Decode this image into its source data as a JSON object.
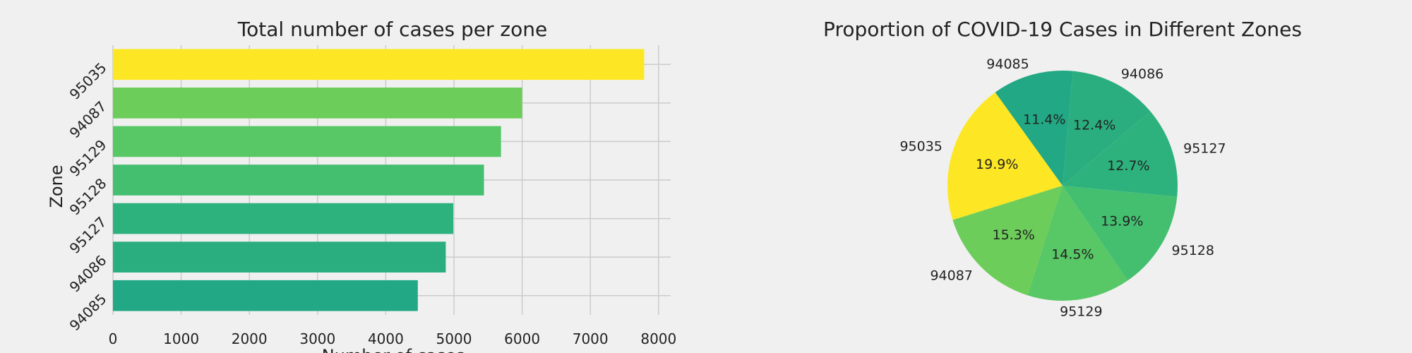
{
  "chart_data": [
    {
      "type": "bar",
      "orientation": "horizontal",
      "title": "Total number of cases per zone",
      "xlabel": "Number of cases",
      "ylabel": "Zone",
      "categories": [
        "95035",
        "94087",
        "95129",
        "95128",
        "95127",
        "94086",
        "94085"
      ],
      "values": [
        7790,
        6000,
        5690,
        5440,
        4990,
        4880,
        4470
      ],
      "xticks": [
        0,
        1000,
        2000,
        3000,
        4000,
        5000,
        6000,
        7000,
        8000
      ],
      "xlim": [
        0,
        8150
      ],
      "grid": true,
      "colors": [
        "#fde725",
        "#6ccd5a",
        "#58c765",
        "#44bf70",
        "#2db27d",
        "#2aae80",
        "#22a884"
      ]
    },
    {
      "type": "pie",
      "title": "Proportion of COVID-19 Cases in Different Zones",
      "labels": [
        "95035",
        "94087",
        "95129",
        "95128",
        "95127",
        "94086",
        "94085"
      ],
      "values": [
        19.9,
        15.3,
        14.5,
        13.9,
        12.7,
        12.4,
        11.4
      ],
      "value_labels": [
        "19.9%",
        "15.3%",
        "14.5%",
        "13.9%",
        "12.7%",
        "12.4%",
        "11.4%"
      ],
      "colors": [
        "#fde725",
        "#6ccd5a",
        "#58c765",
        "#44bf70",
        "#2db27d",
        "#2aae80",
        "#22a884"
      ]
    }
  ]
}
